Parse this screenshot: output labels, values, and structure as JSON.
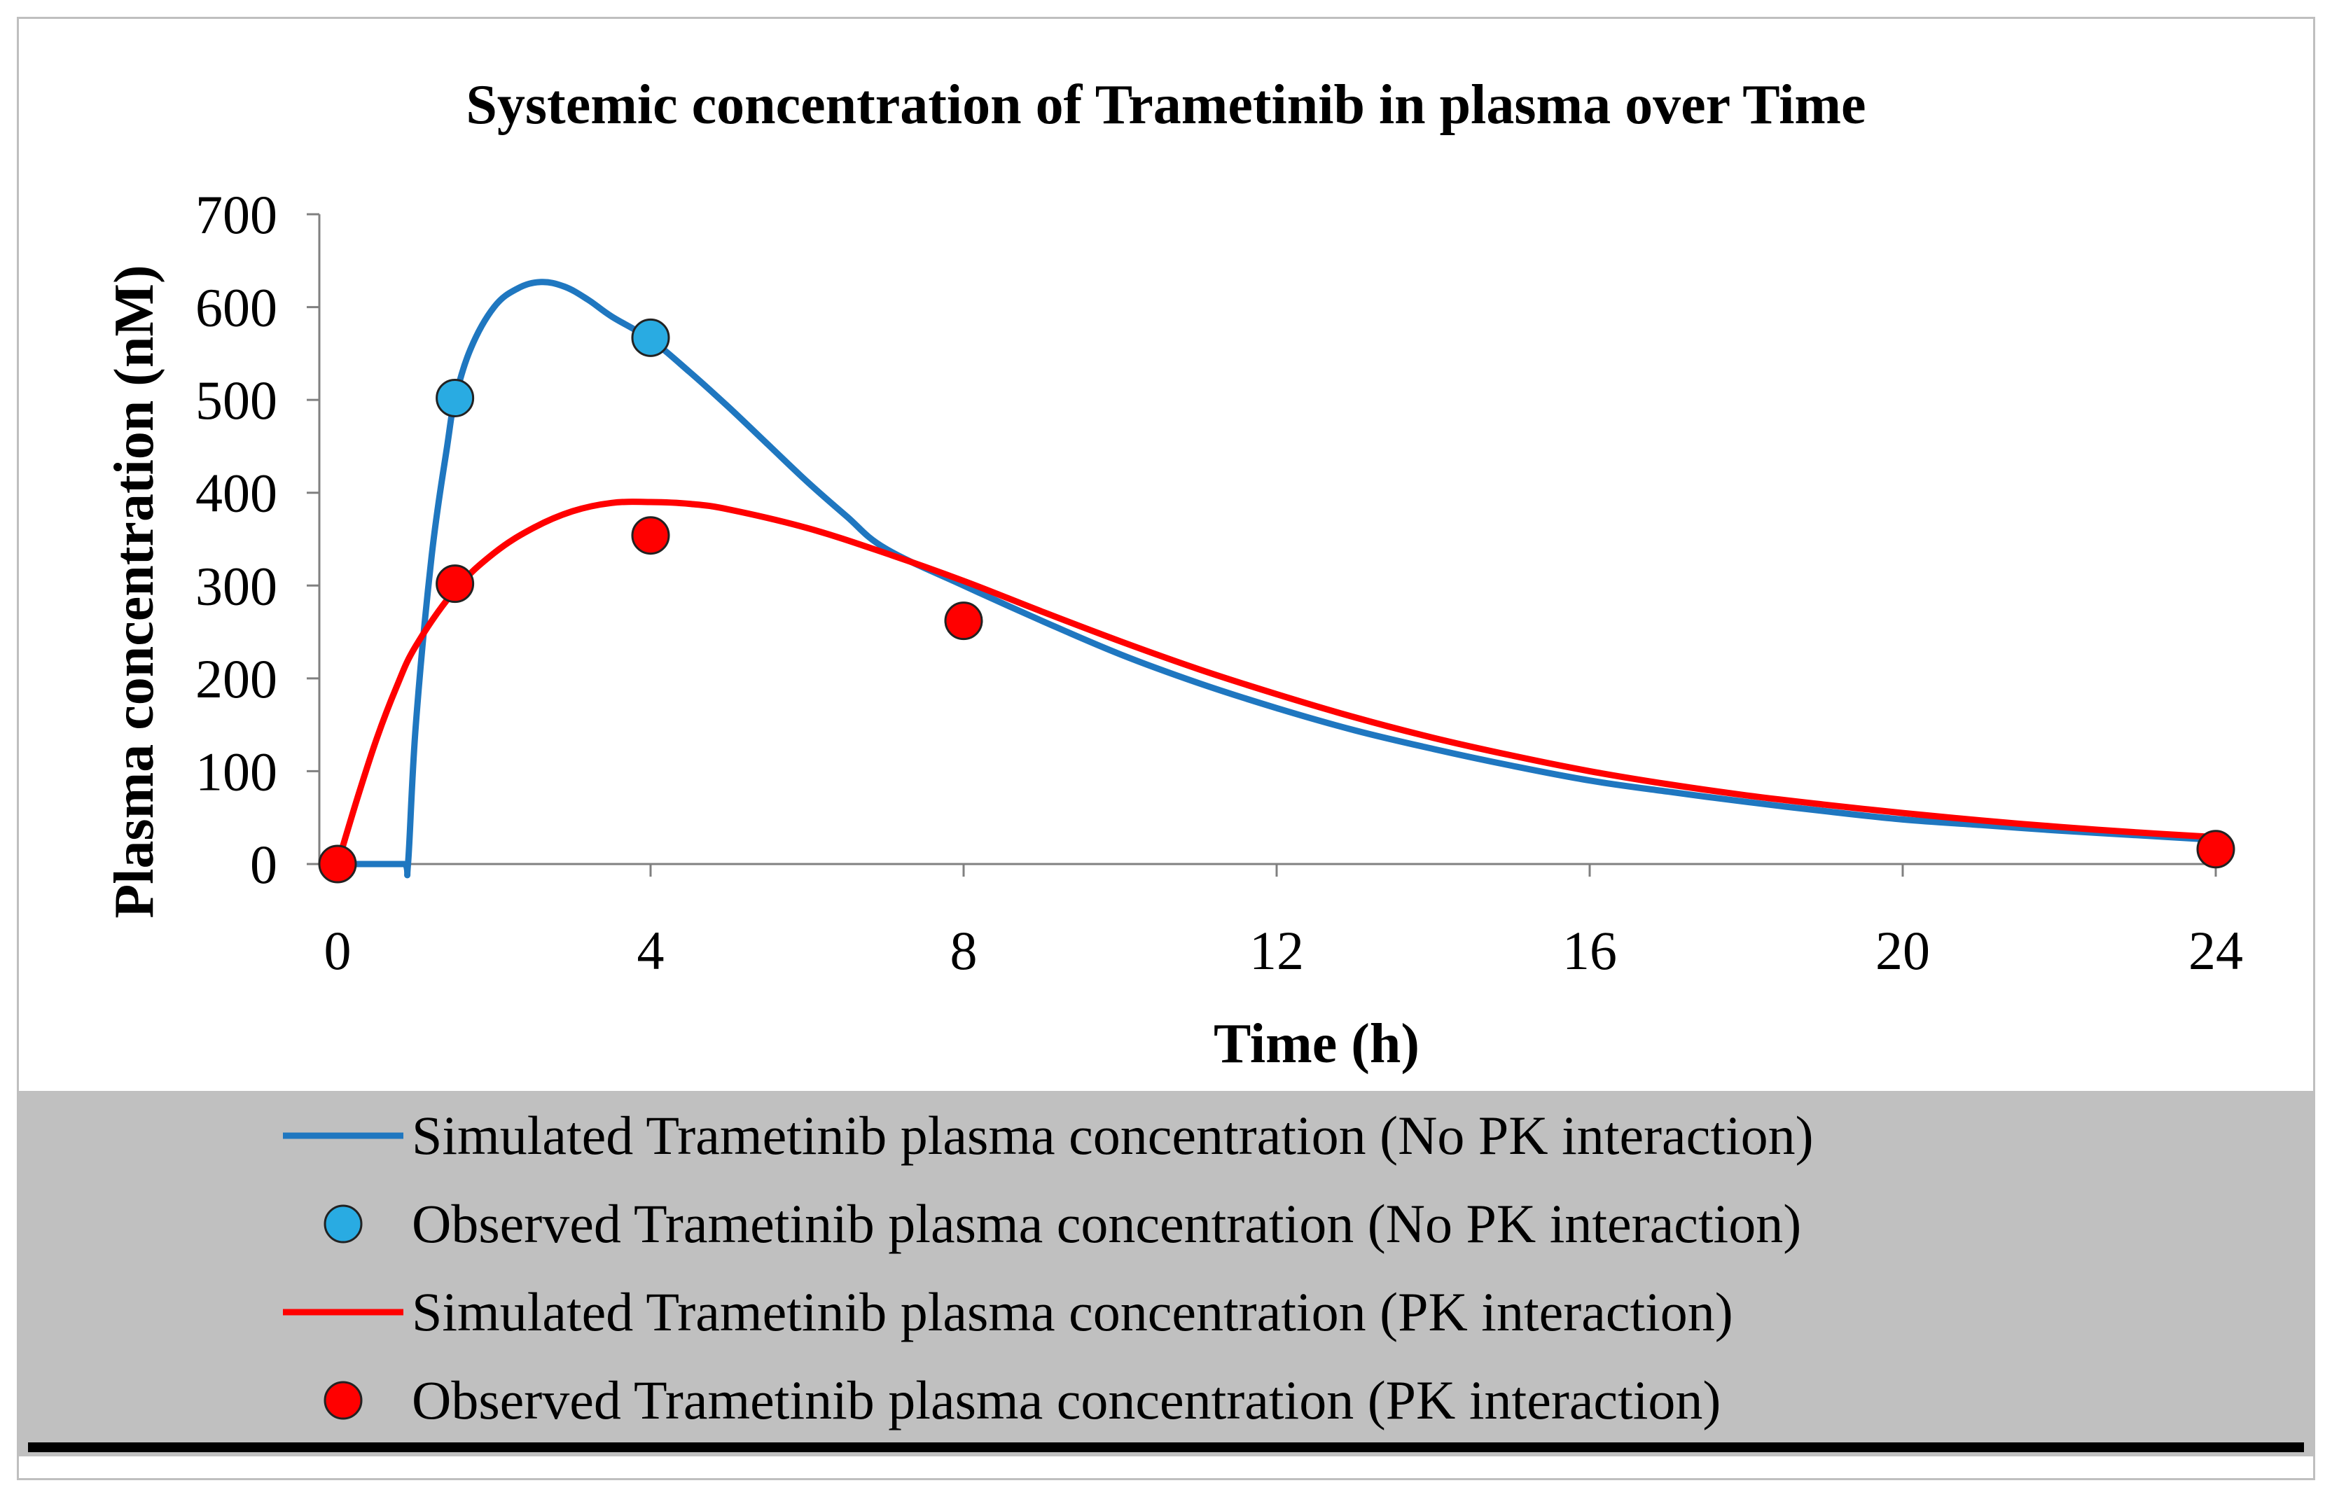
{
  "chart_data": {
    "type": "line",
    "title": "Systemic concentration of Trametinib in plasma over Time",
    "xlabel": "Time (h)",
    "ylabel": "Plasma concentration (nM)",
    "xlim": [
      0,
      24
    ],
    "ylim": [
      0,
      700
    ],
    "x_ticks": [
      0,
      4,
      8,
      12,
      16,
      20,
      24
    ],
    "y_ticks": [
      0,
      100,
      200,
      300,
      400,
      500,
      600,
      700
    ],
    "grid": false,
    "legend_position": "bottom",
    "series": [
      {
        "name": "Simulated Trametinib plasma concentration (No PK interaction)",
        "kind": "line",
        "color": "#1f77c0",
        "x": [
          0,
          0.5,
          0.85,
          0.9,
          1.0,
          1.2,
          1.4,
          1.5,
          1.7,
          2.0,
          2.3,
          2.6,
          2.9,
          3.2,
          3.5,
          4.0,
          4.5,
          5.0,
          5.5,
          6.0,
          6.5,
          7.0,
          8.0,
          9.0,
          10.0,
          11.0,
          12.0,
          13.0,
          14.0,
          15.0,
          16.0,
          17.0,
          18.0,
          19.0,
          20.0,
          21.0,
          22.0,
          23.0,
          24.0
        ],
        "y": [
          0,
          0,
          0,
          0,
          150,
          330,
          450,
          500,
          555,
          600,
          620,
          627,
          622,
          608,
          590,
          565,
          530,
          492,
          452,
          412,
          375,
          340,
          300,
          262,
          226,
          195,
          168,
          144,
          124,
          106,
          90,
          78,
          67,
          57,
          48,
          42,
          36,
          31,
          26
        ]
      },
      {
        "name": "Observed Trametinib plasma concentration (No PK interaction)",
        "kind": "marker",
        "color": "#29abe2",
        "x": [
          1.5,
          4
        ],
        "y": [
          502,
          567
        ]
      },
      {
        "name": "Simulated Trametinib plasma concentration (PK interaction)",
        "kind": "line",
        "color": "#ff0000",
        "x": [
          0,
          0.25,
          0.5,
          0.75,
          1.0,
          1.5,
          2.0,
          2.5,
          3.0,
          3.5,
          4.0,
          4.5,
          5.0,
          6.0,
          7.0,
          8.0,
          9.0,
          10.0,
          11.0,
          12.0,
          13.0,
          14.0,
          15.0,
          16.0,
          17.0,
          18.0,
          19.0,
          20.0,
          21.0,
          22.0,
          23.0,
          24.0
        ],
        "y": [
          0,
          70,
          135,
          190,
          235,
          295,
          335,
          362,
          380,
          389,
          390,
          388,
          382,
          362,
          335,
          305,
          272,
          240,
          210,
          183,
          158,
          136,
          117,
          100,
          86,
          74,
          64,
          55,
          47,
          40,
          34,
          29
        ]
      },
      {
        "name": "Observed Trametinib plasma concentration (PK interaction)",
        "kind": "marker",
        "color": "#ff0000",
        "x": [
          0,
          1.5,
          4,
          8,
          24
        ],
        "y": [
          0,
          302,
          354,
          262,
          16
        ]
      }
    ]
  }
}
